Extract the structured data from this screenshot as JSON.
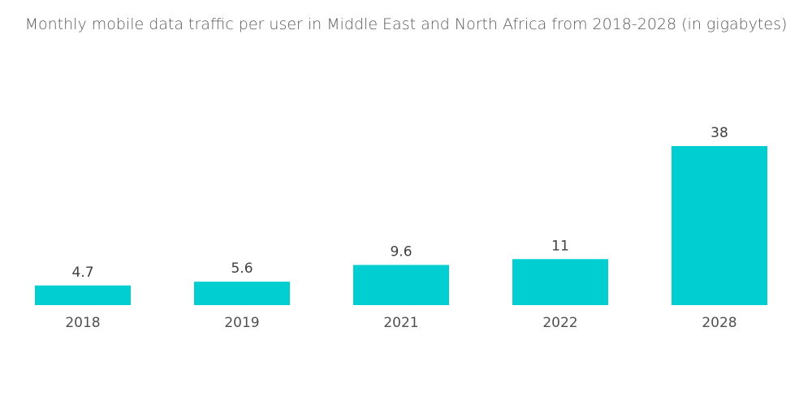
{
  "chart_data": {
    "type": "bar",
    "title": "Monthly mobile data traffic per user in Middle East and North Africa from 2018-2028 (in gigabytes)",
    "xlabel": "",
    "ylabel": "",
    "categories": [
      "2018",
      "2019",
      "2021",
      "2022",
      "2028"
    ],
    "values": [
      4.7,
      5.6,
      9.6,
      11,
      38
    ],
    "data_labels": [
      "4.7",
      "5.6",
      "9.6",
      "11",
      "38"
    ],
    "ylim": [
      0,
      38
    ],
    "grid": false,
    "legend": "none",
    "bar_color": "#00CED1"
  }
}
